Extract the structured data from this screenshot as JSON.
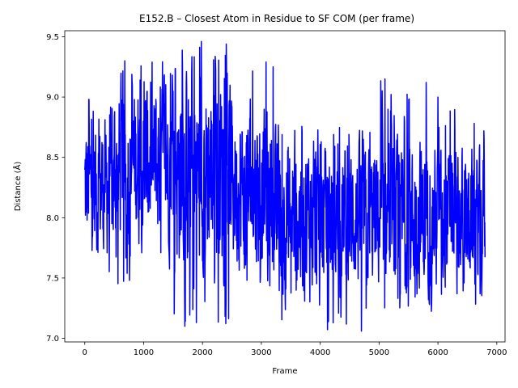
{
  "chart_data": {
    "type": "line",
    "title": "E152.B – Closest Atom in Residue to SF COM (per frame)",
    "xlabel": "Frame",
    "ylabel": "Distance (Å)",
    "xlim": [
      -340,
      7140
    ],
    "ylim": [
      6.97,
      9.55
    ],
    "xticks": [
      0,
      1000,
      2000,
      3000,
      4000,
      5000,
      6000,
      7000
    ],
    "yticks": [
      7.0,
      7.5,
      8.0,
      8.5,
      9.0,
      9.5
    ],
    "xtick_labels": [
      "0",
      "1000",
      "2000",
      "3000",
      "4000",
      "5000",
      "6000",
      "7000"
    ],
    "ytick_labels": [
      "7.0",
      "7.5",
      "8.0",
      "8.5",
      "9.0",
      "9.5"
    ],
    "grid": false,
    "legend": "none",
    "series": [
      {
        "color": "#0000ff",
        "n_frames": 6800,
        "summary": {
          "frame_range": [
            0,
            6800
          ],
          "min": 7.06,
          "max": 9.46,
          "min_frame": 4700,
          "max_frame": 1980
        },
        "segments": [
          {
            "frame_start": 0,
            "frame_end": 500,
            "mean": 8.25,
            "low": 7.4,
            "high": 8.98
          },
          {
            "frame_start": 500,
            "frame_end": 1500,
            "mean": 8.45,
            "low": 7.45,
            "high": 9.3
          },
          {
            "frame_start": 1500,
            "frame_end": 2500,
            "mean": 8.4,
            "low": 7.1,
            "high": 9.46
          },
          {
            "frame_start": 2500,
            "frame_end": 3200,
            "mean": 8.25,
            "low": 7.4,
            "high": 9.29
          },
          {
            "frame_start": 3200,
            "frame_end": 4000,
            "mean": 8.0,
            "low": 7.15,
            "high": 8.85
          },
          {
            "frame_start": 4000,
            "frame_end": 5000,
            "mean": 8.0,
            "low": 7.06,
            "high": 8.75
          },
          {
            "frame_start": 5000,
            "frame_end": 6000,
            "mean": 8.0,
            "low": 7.2,
            "high": 9.15
          },
          {
            "frame_start": 6000,
            "frame_end": 6800,
            "mean": 8.0,
            "low": 7.28,
            "high": 9.0
          }
        ],
        "extremes": [
          {
            "frame": 70,
            "value": 8.98
          },
          {
            "frame": 680,
            "value": 9.3
          },
          {
            "frame": 1660,
            "value": 9.26
          },
          {
            "frame": 1700,
            "value": 7.1
          },
          {
            "frame": 1980,
            "value": 9.46
          },
          {
            "frame": 3080,
            "value": 9.29
          },
          {
            "frame": 4700,
            "value": 7.06
          },
          {
            "frame": 5100,
            "value": 9.15
          },
          {
            "frame": 6000,
            "value": 9.0
          },
          {
            "frame": 6780,
            "value": 8.72
          }
        ]
      }
    ]
  }
}
